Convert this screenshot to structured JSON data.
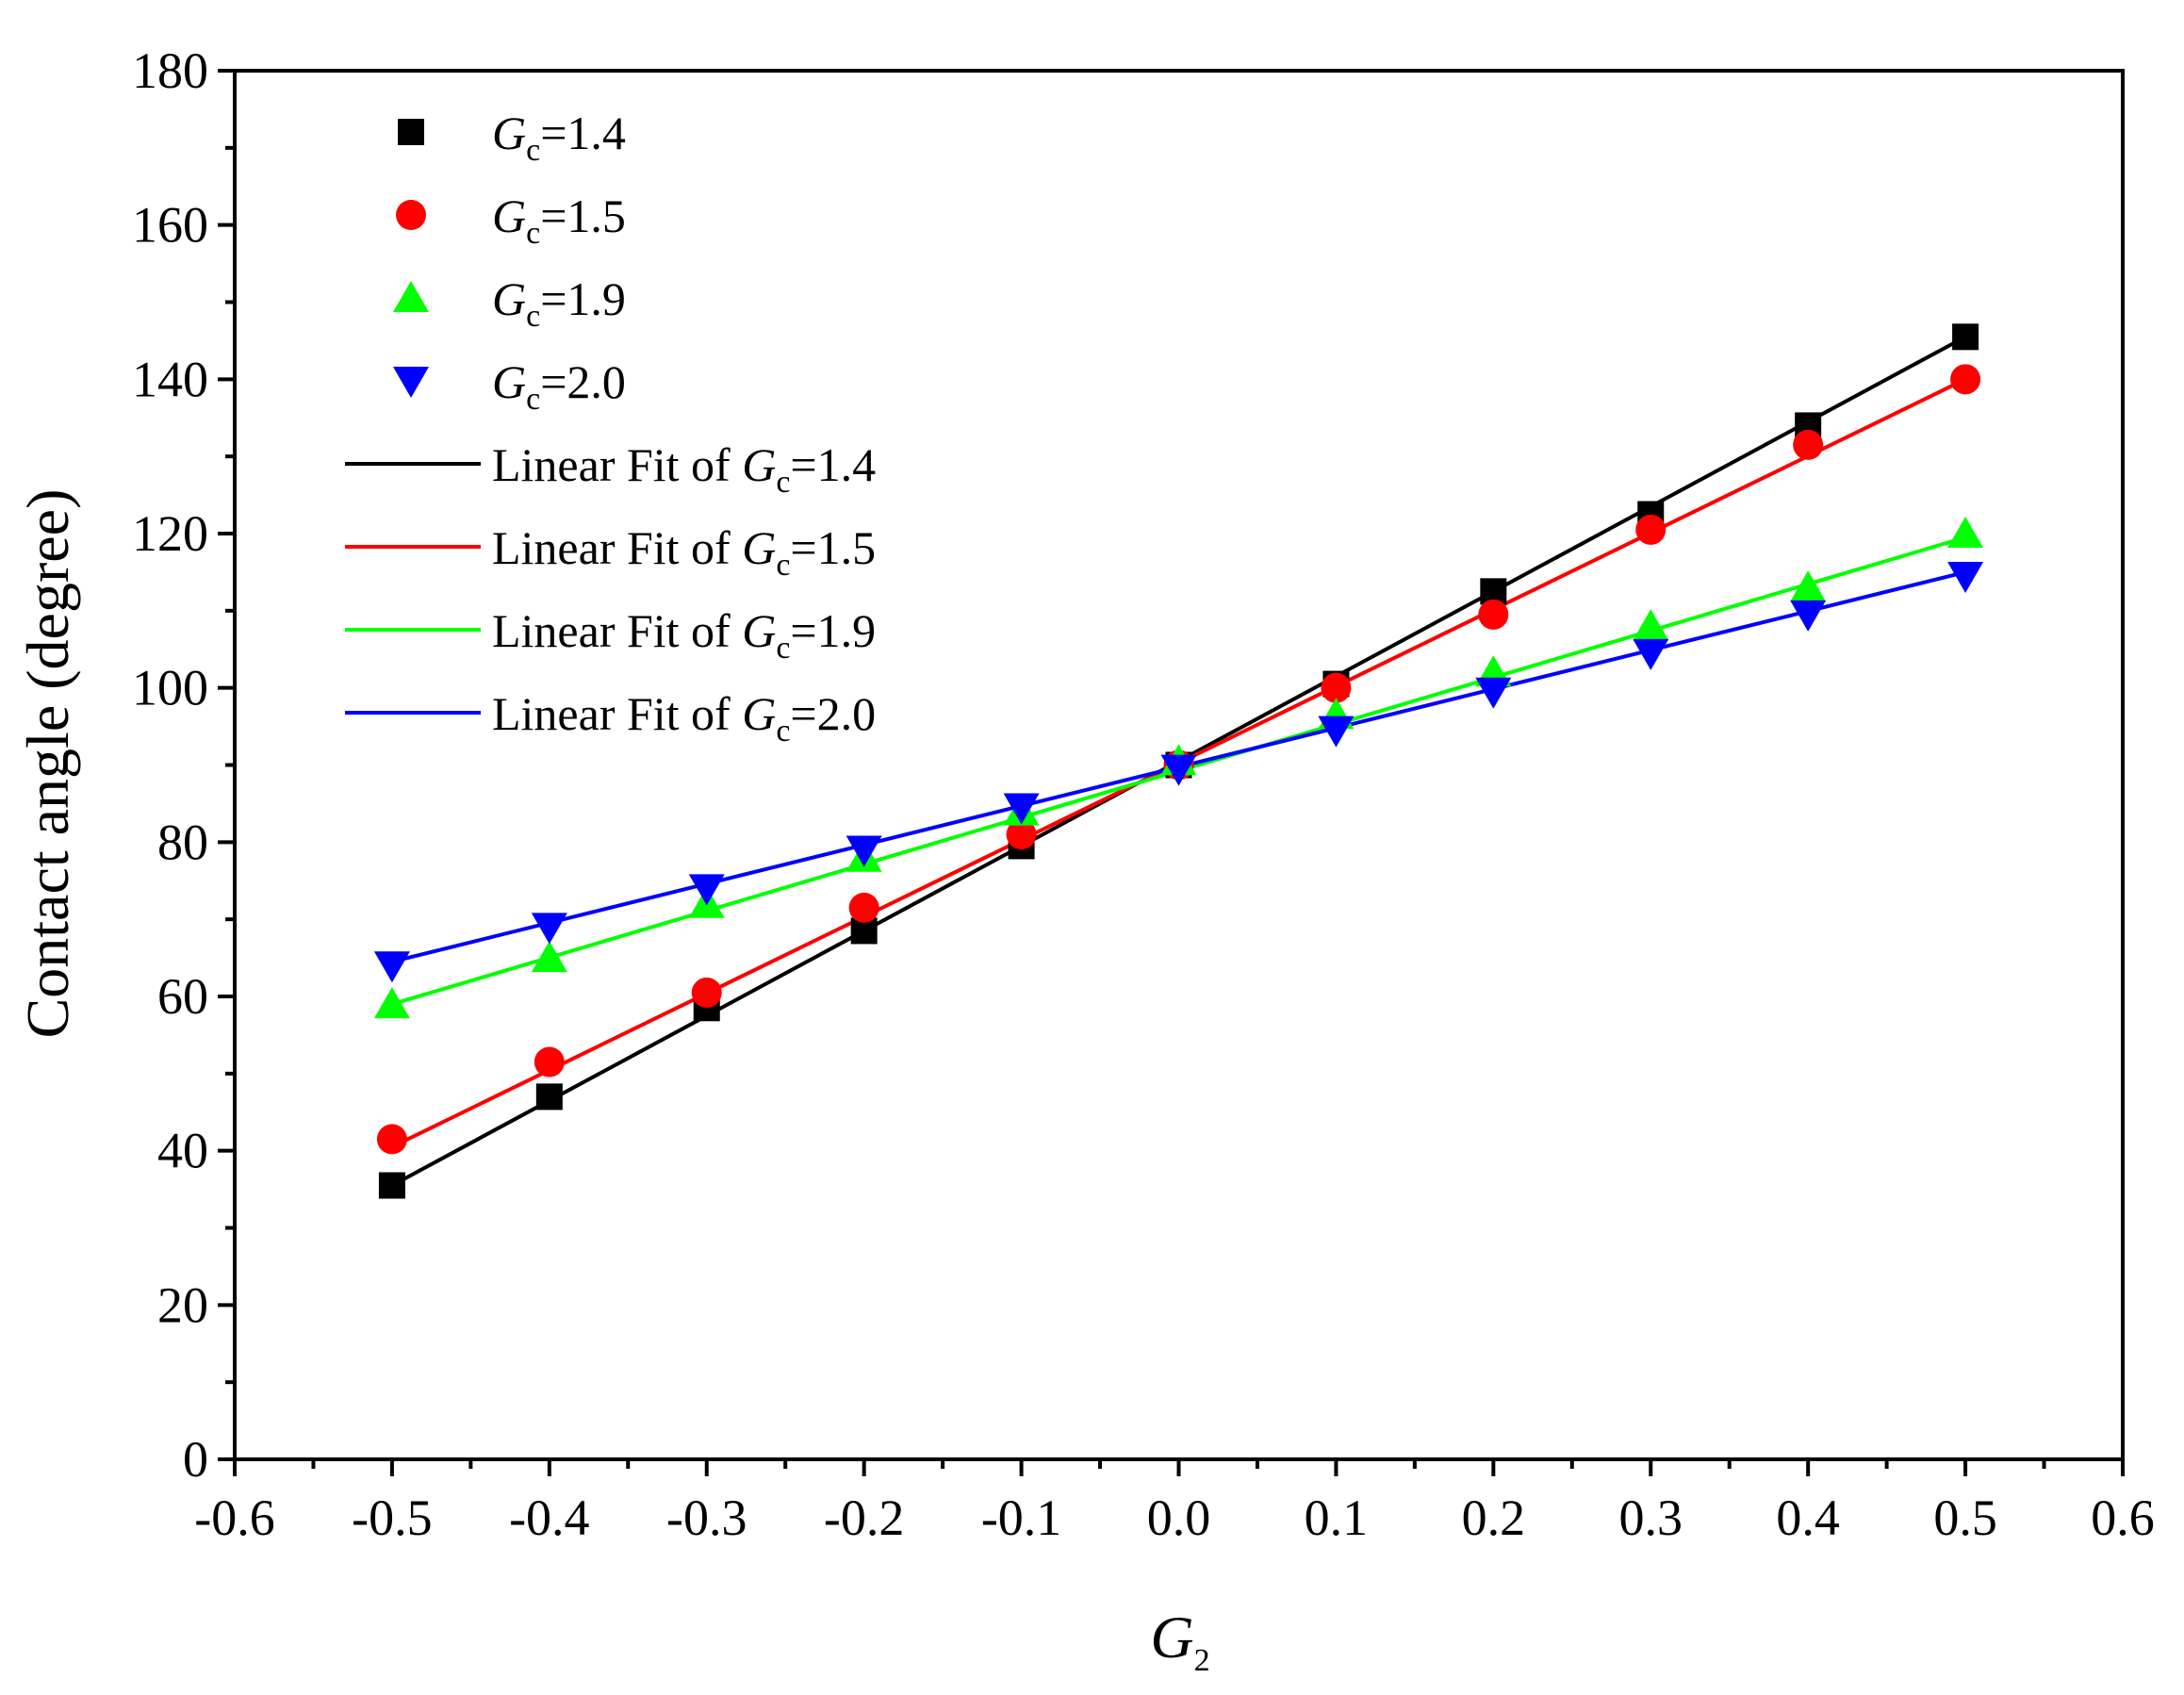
{
  "chart_data": {
    "type": "scatter",
    "xlabel": {
      "main": "G",
      "sub": "2"
    },
    "ylabel": "Contact angle (degree)",
    "xlim": [
      -0.6,
      0.6
    ],
    "ylim": [
      0,
      180
    ],
    "xticks": [
      "-0.6",
      "-0.5",
      "-0.4",
      "-0.3",
      "-0.2",
      "-0.1",
      "0.0",
      "0.1",
      "0.2",
      "0.3",
      "0.4",
      "0.5",
      "0.6"
    ],
    "yticks": [
      "0",
      "20",
      "40",
      "60",
      "80",
      "100",
      "120",
      "140",
      "160",
      "180"
    ],
    "x": [
      -0.5,
      -0.4,
      -0.3,
      -0.2,
      -0.1,
      0.0,
      0.1,
      0.2,
      0.3,
      0.4,
      0.5
    ],
    "series": [
      {
        "name": "Gc=1.4",
        "label_main": "G",
        "label_sub": "c",
        "label_value": "=1.4",
        "fit_label_prefix": "Linear Fit of ",
        "marker": "square",
        "color": "#000000",
        "values": [
          35.5,
          47,
          58.5,
          68.5,
          79.5,
          90,
          100.5,
          112.5,
          122.5,
          134,
          145.5
        ],
        "fit": [
          35.5,
          145.5
        ]
      },
      {
        "name": "Gc=1.5",
        "label_main": "G",
        "label_sub": "c",
        "label_value": "=1.5",
        "fit_label_prefix": "Linear Fit of ",
        "marker": "circle",
        "color": "#ff0000",
        "values": [
          41.5,
          51.5,
          60.5,
          71.5,
          81,
          90,
          100,
          109.5,
          120.5,
          131.5,
          140
        ],
        "fit": [
          40.5,
          140
        ]
      },
      {
        "name": "Gc=1.9",
        "label_main": "G",
        "label_sub": "c",
        "label_value": "=1.9",
        "fit_label_prefix": "Linear Fit of ",
        "marker": "triangle-up",
        "color": "#00ff00",
        "values": [
          59,
          65,
          72,
          78,
          84,
          90.5,
          96.5,
          102,
          108,
          113,
          120
        ],
        "fit": [
          59,
          119.5
        ]
      },
      {
        "name": "Gc=2.0",
        "label_main": "G",
        "label_sub": "c",
        "label_value": "=2.0",
        "fit_label_prefix": "Linear Fit of ",
        "marker": "triangle-down",
        "color": "#0000ff",
        "values": [
          64,
          69,
          74,
          79,
          84.5,
          89.5,
          94.5,
          99.5,
          104.5,
          109.5,
          114.5
        ],
        "fit": [
          64.5,
          115
        ]
      }
    ],
    "legend_position": "top-left"
  }
}
